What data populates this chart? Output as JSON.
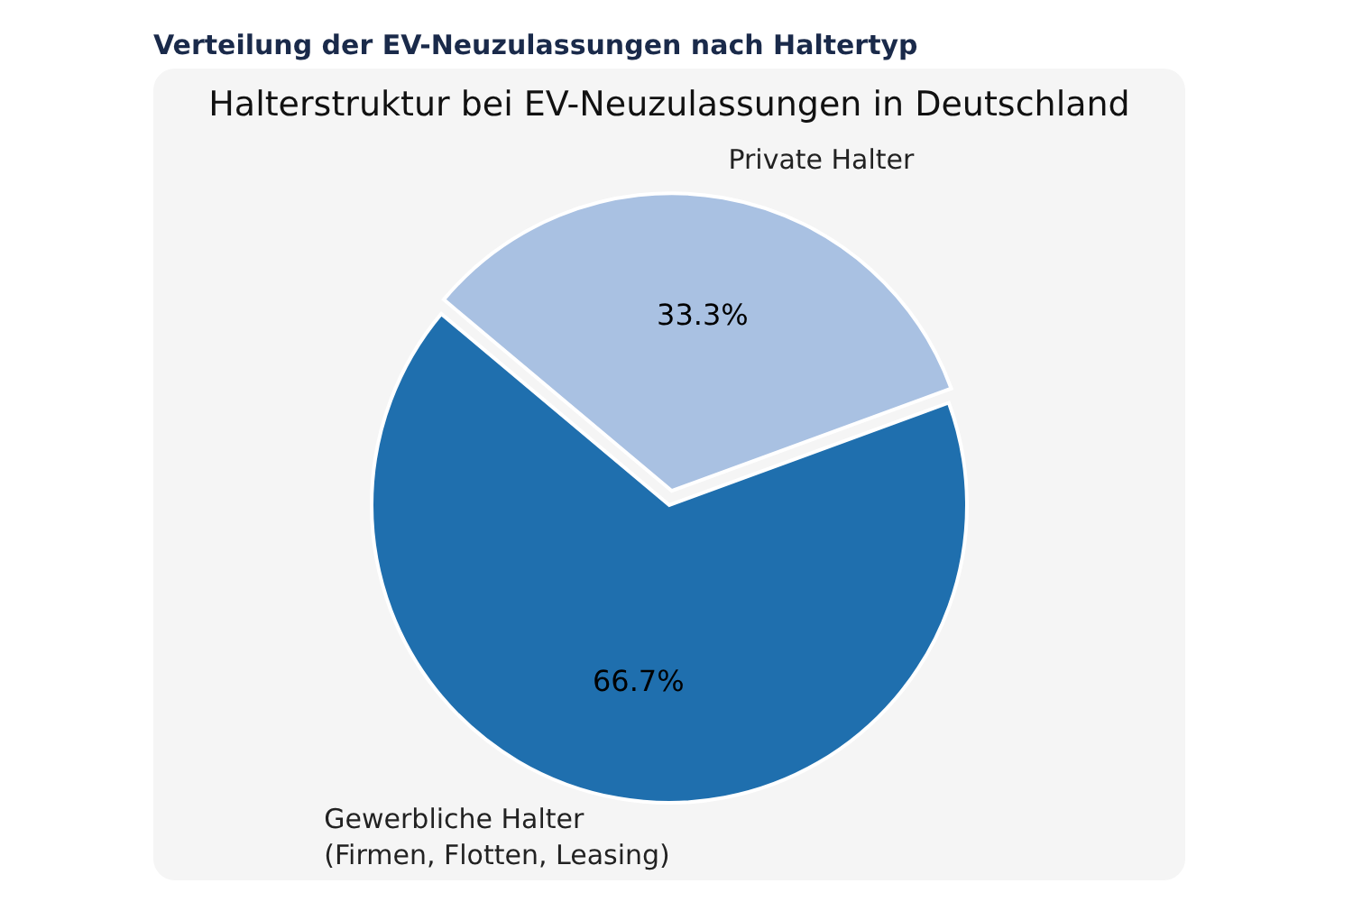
{
  "chart_data": {
    "type": "pie",
    "title": "Verteilung der EV-Neuzulassungen nach Haltertyp",
    "subtitle": "Halterstruktur bei EV-Neuzulassungen in Deutschland",
    "categories": [
      "Private Halter",
      "Gewerbliche Halter (Firmen, Flotten, Leasing)"
    ],
    "values": [
      33.3,
      66.7
    ],
    "colors": [
      "#a9c1e2",
      "#1f6fae"
    ],
    "value_labels": [
      "33.3%",
      "66.7%"
    ]
  }
}
